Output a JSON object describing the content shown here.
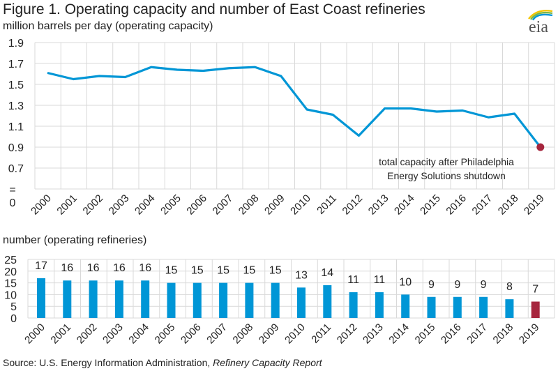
{
  "title": "Figure 1. Operating capacity and number of East Coast refineries",
  "logo_text": "eia",
  "source": {
    "prefix": "Source: U.S. Energy Information Administration, ",
    "italic": "Refinery Capacity Report"
  },
  "colors": {
    "line": "#0096d6",
    "highlight": "#a6263e",
    "bar": "#0096d6",
    "grid": "#d9d9d9"
  },
  "chart_data": [
    {
      "type": "line",
      "ylabel": "million barrels per day (operating capacity)",
      "categories": [
        "2000",
        "2001",
        "2002",
        "2003",
        "2004",
        "2005",
        "2006",
        "2007",
        "2008",
        "2009",
        "2010",
        "2011",
        "2012",
        "2013",
        "2014",
        "2015",
        "2016",
        "2017",
        "2018",
        "2019"
      ],
      "values": [
        1.61,
        1.55,
        1.58,
        1.57,
        1.665,
        1.64,
        1.63,
        1.655,
        1.665,
        1.58,
        1.26,
        1.21,
        1.01,
        1.27,
        1.27,
        1.24,
        1.25,
        1.185,
        1.22,
        0.9
      ],
      "yticks": [
        "1.9",
        "1.7",
        "1.5",
        "1.3",
        "1.1",
        "0.9",
        "0.7",
        "=",
        "0"
      ],
      "ylim": [
        0.5,
        1.9
      ],
      "axis_break": true,
      "grid": true,
      "highlight": {
        "category": "2019",
        "value": 0.9,
        "annotation": [
          "total capacity after Philadelphia",
          "Energy Solutions shutdown"
        ]
      }
    },
    {
      "type": "bar",
      "ylabel": "number (operating refineries)",
      "categories": [
        "2000",
        "2001",
        "2002",
        "2003",
        "2004",
        "2005",
        "2006",
        "2007",
        "2008",
        "2009",
        "2010",
        "2011",
        "2012",
        "2013",
        "2014",
        "2015",
        "2016",
        "2017",
        "2018",
        "2019"
      ],
      "values": [
        17,
        16,
        16,
        16,
        16,
        15,
        15,
        15,
        15,
        15,
        13,
        14,
        11,
        11,
        10,
        9,
        9,
        9,
        8,
        7
      ],
      "yticks": [
        "25",
        "20",
        "15",
        "10",
        "5",
        "0"
      ],
      "ylim": [
        0,
        25
      ],
      "grid": true,
      "highlight_category": "2019"
    }
  ]
}
